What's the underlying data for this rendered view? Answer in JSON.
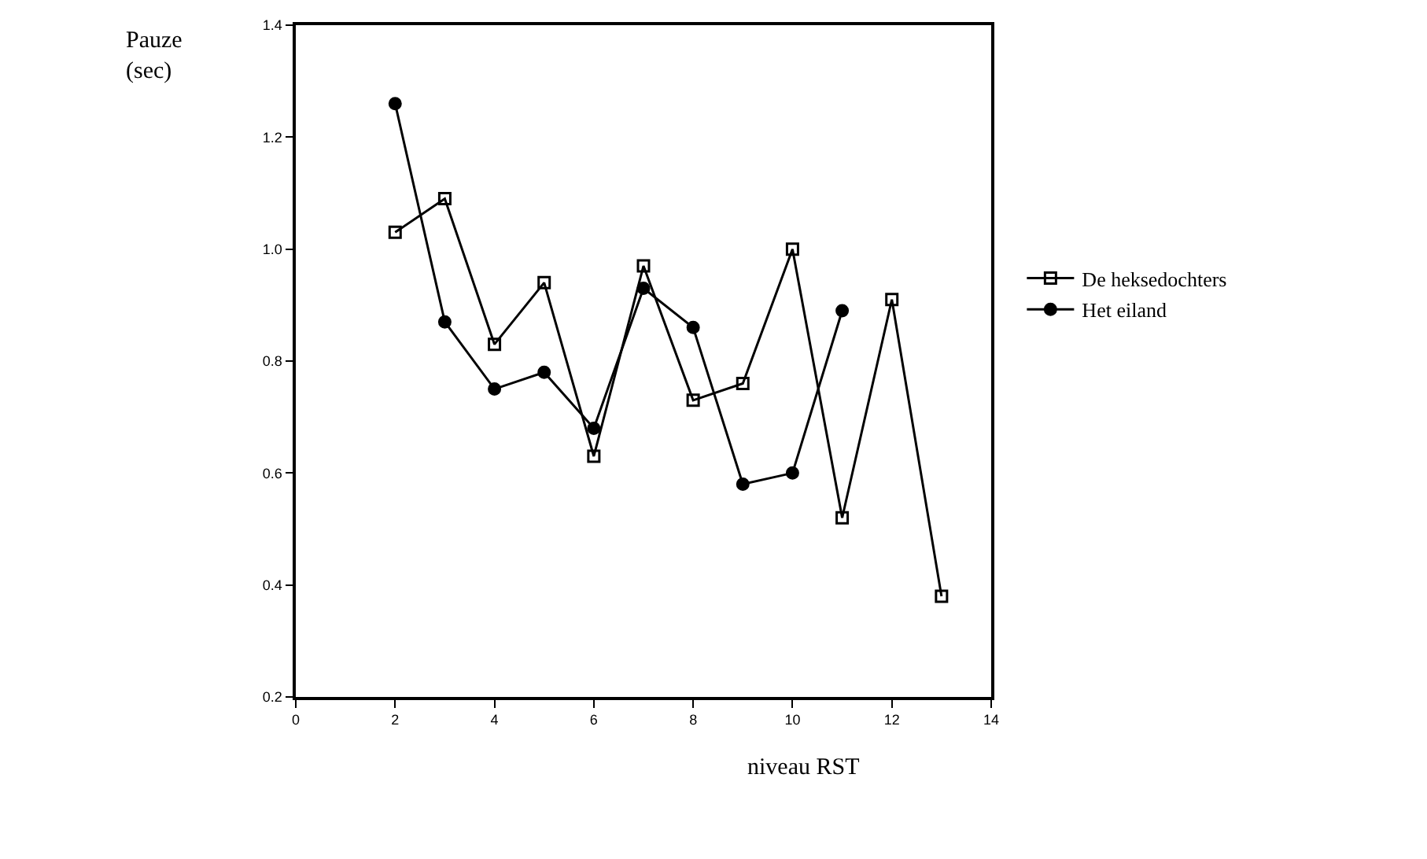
{
  "chart_data": {
    "type": "line",
    "xlabel": "niveau RST",
    "ylabel": "Pauze\n(sec)",
    "x": [
      2,
      3,
      4,
      5,
      6,
      7,
      8,
      9,
      10,
      11,
      12,
      13
    ],
    "series": [
      {
        "name": "De heksedochters",
        "color": "#000000",
        "marker": "square",
        "values": [
          1.03,
          1.09,
          0.83,
          0.94,
          0.63,
          0.97,
          0.73,
          0.76,
          1.0,
          0.52,
          0.91,
          0.38
        ]
      },
      {
        "name": "Het eiland",
        "color": "#000000",
        "marker": "circle",
        "values": [
          1.26,
          0.87,
          0.75,
          0.78,
          0.68,
          0.93,
          0.86,
          0.58,
          0.6,
          0.89,
          null,
          null
        ]
      }
    ],
    "xlim": [
      0,
      14
    ],
    "xticks": [
      0,
      2,
      4,
      6,
      8,
      10,
      12,
      14
    ],
    "ylim": [
      0.2,
      1.4
    ],
    "yticks": [
      {
        "value": 0.2,
        "label": "0.2"
      },
      {
        "value": 0.4,
        "label": "0.4"
      },
      {
        "value": 0.6,
        "label": "0.6"
      },
      {
        "value": 0.8,
        "label": "0.8"
      },
      {
        "value": 1,
        "label": "1.0"
      },
      {
        "value": 1.2,
        "label": "1.2"
      },
      {
        "value": 1.4,
        "label": "1.4"
      }
    ],
    "legend": "right",
    "line_style": "solid"
  }
}
